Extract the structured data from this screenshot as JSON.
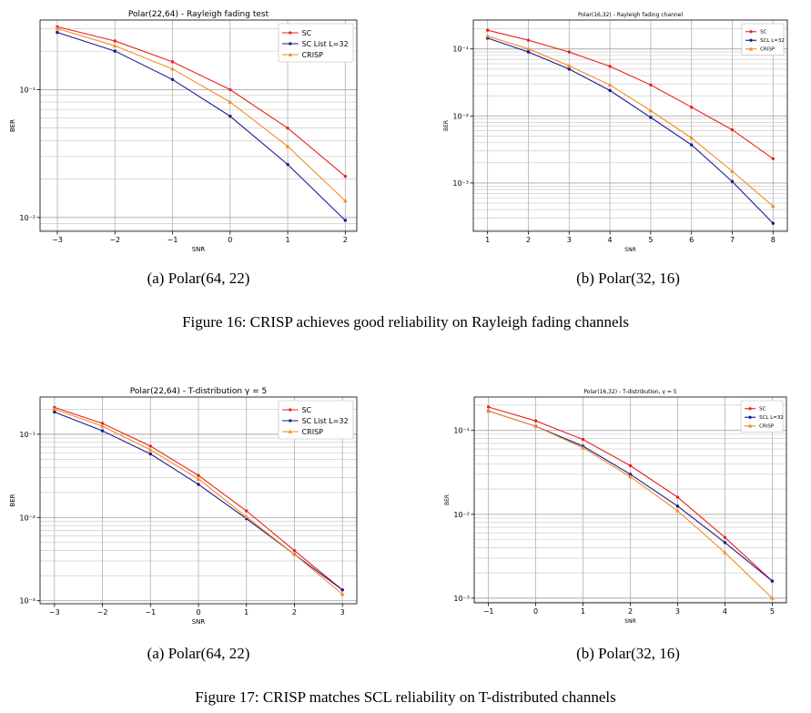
{
  "chart_data": [
    {
      "type": "line",
      "title": "Polar(22,64) - Rayleigh fading test",
      "xlabel": "SNR",
      "ylabel": "BER",
      "yscale": "log",
      "xlim": [
        -3.3,
        2.2
      ],
      "ylim": [
        0.0078,
        0.35
      ],
      "xticks": [
        -3,
        -2,
        -1,
        0,
        1,
        2
      ],
      "xtick_labels": [
        "−3",
        "−2",
        "−1",
        "0",
        "1",
        "2"
      ],
      "yticks": [
        0.1,
        0.01
      ],
      "ytick_labels": [
        "10⁻¹",
        "10⁻²"
      ],
      "grid": true,
      "legend": "top-right",
      "x": [
        -3,
        -2,
        -1,
        0,
        1,
        2
      ],
      "series": [
        {
          "name": "SC",
          "color": "#e8231c",
          "marker": "dot",
          "values": [
            0.31,
            0.24,
            0.165,
            0.1,
            0.05,
            0.021
          ]
        },
        {
          "name": "SC List L=32",
          "color": "#1a1a8c",
          "marker": "dot",
          "values": [
            0.28,
            0.2,
            0.12,
            0.062,
            0.026,
            0.0095
          ]
        },
        {
          "name": "CRISP",
          "color": "#f28c28",
          "marker": "triangle",
          "values": [
            0.3,
            0.22,
            0.145,
            0.08,
            0.036,
            0.0135
          ]
        }
      ]
    },
    {
      "type": "line",
      "title": "Polar(16,32) - Rayleigh fading channel",
      "xlabel": "SNR",
      "ylabel": "BER",
      "yscale": "log",
      "xlim": [
        0.65,
        8.35
      ],
      "ylim": [
        0.00019,
        0.27
      ],
      "xticks": [
        1,
        2,
        3,
        4,
        5,
        6,
        7,
        8
      ],
      "xtick_labels": [
        "1",
        "2",
        "3",
        "4",
        "5",
        "6",
        "7",
        "8"
      ],
      "yticks": [
        0.1,
        0.01,
        0.001
      ],
      "ytick_labels": [
        "10⁻¹",
        "10⁻²",
        "10⁻³"
      ],
      "grid": true,
      "legend": "top-right",
      "x": [
        1,
        2,
        3,
        4,
        5,
        6,
        7,
        8
      ],
      "series": [
        {
          "name": "SC",
          "color": "#e8231c",
          "marker": "dot",
          "values": [
            0.19,
            0.135,
            0.09,
            0.055,
            0.029,
            0.0135,
            0.0062,
            0.0023
          ]
        },
        {
          "name": "SCL L=32",
          "color": "#1a1a8c",
          "marker": "dot",
          "values": [
            0.145,
            0.09,
            0.05,
            0.024,
            0.0095,
            0.0037,
            0.00105,
            0.00025
          ]
        },
        {
          "name": "CRISP",
          "color": "#f28c28",
          "marker": "triangle",
          "values": [
            0.155,
            0.1,
            0.056,
            0.029,
            0.012,
            0.0047,
            0.0015,
            0.00045
          ]
        }
      ]
    },
    {
      "type": "line",
      "title": "Polar(22,64) - T-distribution γ = 5",
      "xlabel": "SNR",
      "ylabel": "BER",
      "yscale": "log",
      "xlim": [
        -3.3,
        3.3
      ],
      "ylim": [
        0.00092,
        0.28
      ],
      "xticks": [
        -3,
        -2,
        -1,
        0,
        1,
        2,
        3
      ],
      "xtick_labels": [
        "−3",
        "−2",
        "−1",
        "0",
        "1",
        "2",
        "3"
      ],
      "yticks": [
        0.1,
        0.01,
        0.001
      ],
      "ytick_labels": [
        "10⁻¹",
        "10⁻²",
        "10⁻³"
      ],
      "grid": true,
      "legend": "top-right",
      "x": [
        -3,
        -2,
        -1,
        0,
        1,
        2,
        3
      ],
      "series": [
        {
          "name": "SC",
          "color": "#e8231c",
          "marker": "dot",
          "values": [
            0.21,
            0.135,
            0.072,
            0.032,
            0.012,
            0.004,
            0.00135
          ]
        },
        {
          "name": "SC List L=32",
          "color": "#1a1a8c",
          "marker": "dot",
          "values": [
            0.185,
            0.11,
            0.058,
            0.025,
            0.0097,
            0.0036,
            0.00135
          ]
        },
        {
          "name": "CRISP",
          "color": "#f28c28",
          "marker": "triangle",
          "values": [
            0.2,
            0.125,
            0.065,
            0.029,
            0.0102,
            0.0036,
            0.0012
          ]
        }
      ]
    },
    {
      "type": "line",
      "title": "Polar(16,32) - T-distribution, γ = 5",
      "xlabel": "SNR",
      "ylabel": "BER",
      "yscale": "log",
      "xlim": [
        -1.3,
        5.3
      ],
      "ylim": [
        0.00088,
        0.25
      ],
      "xticks": [
        -1,
        0,
        1,
        2,
        3,
        4,
        5
      ],
      "xtick_labels": [
        "−1",
        "0",
        "1",
        "2",
        "3",
        "4",
        "5"
      ],
      "yticks": [
        0.1,
        0.01,
        0.001
      ],
      "ytick_labels": [
        "10⁻¹",
        "10⁻²",
        "10⁻³"
      ],
      "grid": true,
      "legend": "top-right",
      "x": [
        -1,
        0,
        1,
        2,
        3,
        4,
        5
      ],
      "series": [
        {
          "name": "SC",
          "color": "#e8231c",
          "marker": "dot",
          "values": [
            0.19,
            0.13,
            0.078,
            0.038,
            0.016,
            0.0053,
            0.0016
          ]
        },
        {
          "name": "SCL L=32",
          "color": "#1a1a8c",
          "marker": "dot",
          "values": [
            0.17,
            0.112,
            0.065,
            0.03,
            0.0125,
            0.0046,
            0.0016
          ]
        },
        {
          "name": "CRISP",
          "color": "#f28c28",
          "marker": "triangle",
          "values": [
            0.17,
            0.112,
            0.062,
            0.028,
            0.011,
            0.0035,
            0.001
          ]
        }
      ]
    }
  ],
  "captions": {
    "fig16a": "(a) Polar(64, 22)",
    "fig16b": "(b) Polar(32, 16)",
    "fig16": "Figure 16: CRISP achieves good reliability on Rayleigh fading channels",
    "fig17a": "(a) Polar(64, 22)",
    "fig17b": "(b) Polar(32, 16)",
    "fig17": "Figure 17: CRISP matches SCL reliability on T-distributed channels"
  }
}
